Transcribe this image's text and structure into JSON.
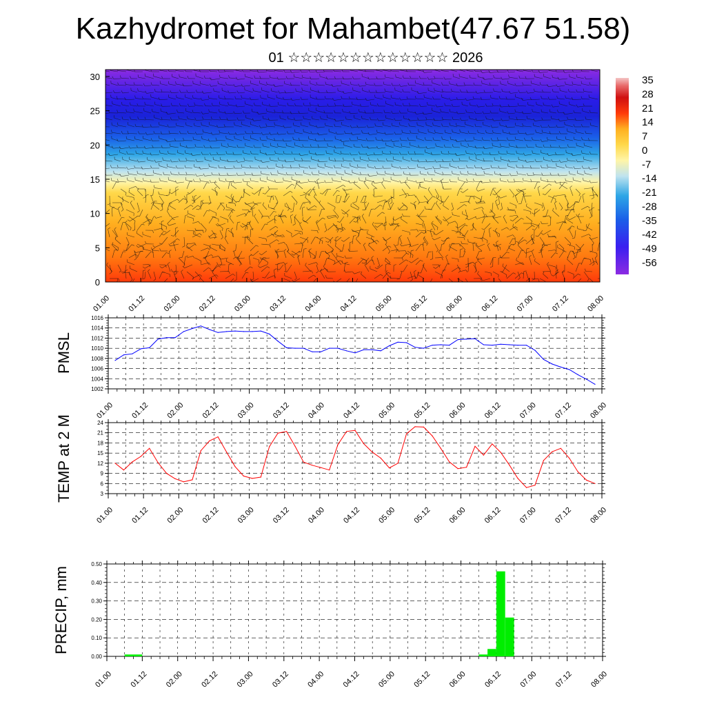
{
  "figure": {
    "title": "Kazhydromet for Mahambet(47.67 51.58)",
    "subtitle": "01 ☆☆☆☆☆☆☆☆☆☆☆☆☆ 2026"
  },
  "colors": {
    "pmsl_line": "#0000ff",
    "temp_line": "#ff0000",
    "precip_bar": "#00ee00",
    "cross_section_scale": [
      "#8c2be2",
      "#3a1ff0",
      "#1a5fe8",
      "#2ea6e6",
      "#bfe3ef",
      "#fff5a8",
      "#ffd84a",
      "#ffb020",
      "#ff7a10",
      "#ff3a0a",
      "#e00000",
      "#d01010",
      "#e86a6a",
      "#f4c4c4"
    ]
  },
  "chart_data": [
    {
      "id": "cross_section",
      "type": "heatmap",
      "title": "",
      "xlabel": "",
      "ylabel": "",
      "x_ticks": [
        "01.00",
        "01.12",
        "02.00",
        "02.12",
        "03.00",
        "03.12",
        "04.00",
        "04.12",
        "05.00",
        "05.12",
        "06.00",
        "06.12",
        "07.00",
        "07.12",
        "08.00"
      ],
      "y_ticks": [
        0,
        5,
        10,
        15,
        20,
        25,
        30
      ],
      "ylim": [
        0,
        31
      ],
      "colorbar_labels": [
        "35",
        "28",
        "21",
        "14",
        "7",
        "0",
        "-7",
        "-14",
        "-21",
        "-28",
        "-35",
        "-42",
        "-49",
        "-56"
      ],
      "overlay": "wind barbs"
    },
    {
      "id": "pmsl",
      "type": "line",
      "ylabel": "PMSL",
      "x_ticks": [
        "01.00",
        "01.12",
        "02.00",
        "02.12",
        "03.00",
        "03.12",
        "04.00",
        "04.12",
        "05.00",
        "05.12",
        "06.00",
        "06.12",
        "07.00",
        "07.12",
        "08.00"
      ],
      "y_ticks": [
        1002,
        1004,
        1006,
        1008,
        1010,
        1012,
        1014,
        1016
      ],
      "ylim": [
        1002,
        1016
      ],
      "grid": true,
      "x": [
        0,
        3,
        6,
        9,
        12,
        15,
        18,
        21,
        24,
        27,
        30,
        33,
        36,
        39,
        42,
        45,
        48,
        51,
        54,
        57,
        60,
        63,
        66,
        69,
        72,
        75,
        78,
        81,
        84,
        87,
        90,
        93,
        96,
        99,
        102,
        105,
        108,
        111,
        114,
        117,
        120,
        123,
        126,
        129,
        132,
        135,
        138,
        141,
        144,
        147,
        150,
        153,
        156,
        159,
        162,
        165,
        168
      ],
      "values": [
        1007.6,
        1008.7,
        1008.9,
        1009.9,
        1010.1,
        1011.8,
        1012.1,
        1012.1,
        1013.3,
        1013.9,
        1014.4,
        1013.7,
        1013.1,
        1013.3,
        1013.4,
        1013.3,
        1013.3,
        1013.4,
        1012.8,
        1011.4,
        1010.1,
        1010.0,
        1010.0,
        1009.3,
        1009.3,
        1010.0,
        1010.0,
        1009.5,
        1009.1,
        1009.7,
        1009.7,
        1009.5,
        1010.5,
        1011.2,
        1011.1,
        1010.2,
        1010.0,
        1010.6,
        1010.7,
        1010.6,
        1011.7,
        1011.8,
        1011.9,
        1010.7,
        1010.6,
        1010.8,
        1010.7,
        1010.6,
        1010.6,
        1009.6,
        1007.8,
        1006.9,
        1006.3,
        1005.8,
        1004.8,
        1003.9,
        1002.9
      ]
    },
    {
      "id": "temp2m",
      "type": "line",
      "ylabel": "TEMP at 2 M",
      "x_ticks": [
        "01.00",
        "01.12",
        "02.00",
        "02.12",
        "03.00",
        "03.12",
        "04.00",
        "04.12",
        "05.00",
        "05.12",
        "06.00",
        "06.12",
        "07.00",
        "07.12",
        "08.00"
      ],
      "y_ticks": [
        3,
        6,
        9,
        12,
        15,
        18,
        21,
        24
      ],
      "ylim": [
        3,
        24
      ],
      "grid": true,
      "x": [
        0,
        3,
        6,
        9,
        12,
        15,
        18,
        21,
        24,
        27,
        30,
        33,
        36,
        39,
        42,
        45,
        48,
        51,
        54,
        57,
        60,
        63,
        66,
        69,
        72,
        75,
        78,
        81,
        84,
        87,
        90,
        93,
        96,
        99,
        102,
        105,
        108,
        111,
        114,
        117,
        120,
        123,
        126,
        129,
        132,
        135,
        138,
        141,
        144,
        147,
        150,
        153,
        156,
        159,
        162,
        165,
        168
      ],
      "values": [
        12.0,
        10.0,
        12.4,
        14.0,
        16.4,
        12.2,
        9.0,
        7.4,
        6.5,
        7.1,
        15.7,
        18.6,
        19.8,
        15.3,
        11.0,
        8.2,
        7.5,
        7.9,
        16.9,
        20.9,
        21.4,
        17.0,
        12.3,
        11.4,
        10.7,
        10.0,
        17.5,
        21.4,
        21.7,
        17.8,
        15.3,
        13.5,
        10.6,
        12.0,
        20.7,
        22.8,
        22.7,
        20.1,
        16.4,
        12.4,
        10.4,
        10.8,
        17.0,
        14.4,
        17.7,
        15.2,
        11.5,
        7.5,
        4.8,
        5.5,
        12.8,
        15.4,
        16.4,
        13.5,
        9.5,
        7.0,
        6.0
      ]
    },
    {
      "id": "precip",
      "type": "bar",
      "ylabel": "PRECIP, mm",
      "x_ticks": [
        "01.00",
        "01.12",
        "02.00",
        "02.12",
        "03.00",
        "03.12",
        "04.00",
        "04.12",
        "05.00",
        "05.12",
        "06.00",
        "06.12",
        "07.00",
        "07.12",
        "08.00"
      ],
      "y_ticks": [
        "0.00",
        "0.10",
        "0.20",
        "0.30",
        "0.40",
        "0.50"
      ],
      "ylim": [
        0,
        0.5
      ],
      "grid": true,
      "bar_width_hours": 3,
      "x": [
        6,
        9,
        126,
        129,
        132,
        135
      ],
      "values": [
        0.01,
        0.01,
        0.01,
        0.04,
        0.46,
        0.21
      ]
    }
  ]
}
